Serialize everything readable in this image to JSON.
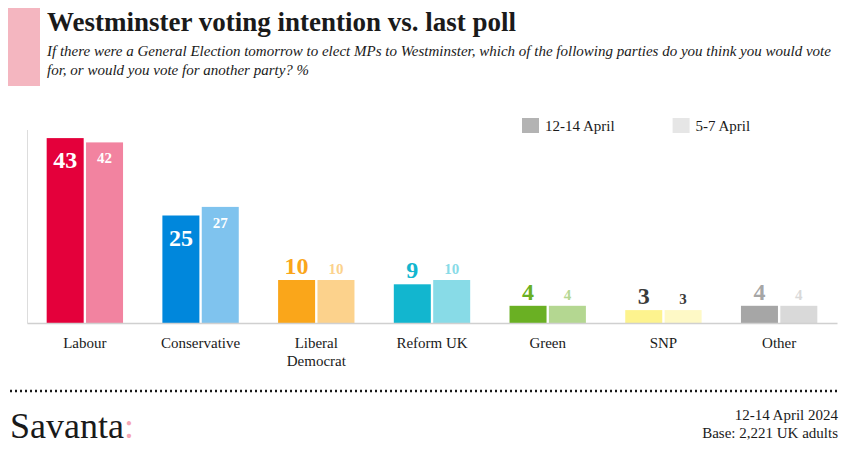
{
  "chart_data": {
    "type": "bar",
    "title": "Westminster voting intention vs. last poll",
    "subtitle": "If there were a General Election tomorrow to elect MPs to Westminster, which of the following parties do you think you would vote for, or would you vote for another party? %",
    "categories": [
      "Labour",
      "Conservative",
      "Liberal Democrat",
      "Reform UK",
      "Green",
      "SNP",
      "Other"
    ],
    "series": [
      {
        "name": "12-14 April",
        "color": "#b3b3b3",
        "colors": [
          "#e4003b",
          "#0087dc",
          "#faa61a",
          "#12b6cf",
          "#6ab023",
          "#fdf38e",
          "#a6a6a6"
        ],
        "values": [
          43,
          25,
          10,
          9,
          4,
          3,
          4
        ]
      },
      {
        "name": "5-7 April",
        "color": "#e6e6e6",
        "colors": [
          "#f283a0",
          "#7fc3ee",
          "#fcd28c",
          "#88dbe7",
          "#b4d791",
          "#fef9c6",
          "#d9d9d9"
        ],
        "values": [
          42,
          27,
          10,
          10,
          4,
          3,
          4
        ]
      }
    ],
    "ylim": [
      0,
      45
    ],
    "tick_labels": "x",
    "data_labels": true,
    "grid": false,
    "legend": "top-right",
    "source": "Savanta:",
    "footer": [
      "12-14 April 2024",
      "Base: 2,221 UK adults"
    ]
  }
}
